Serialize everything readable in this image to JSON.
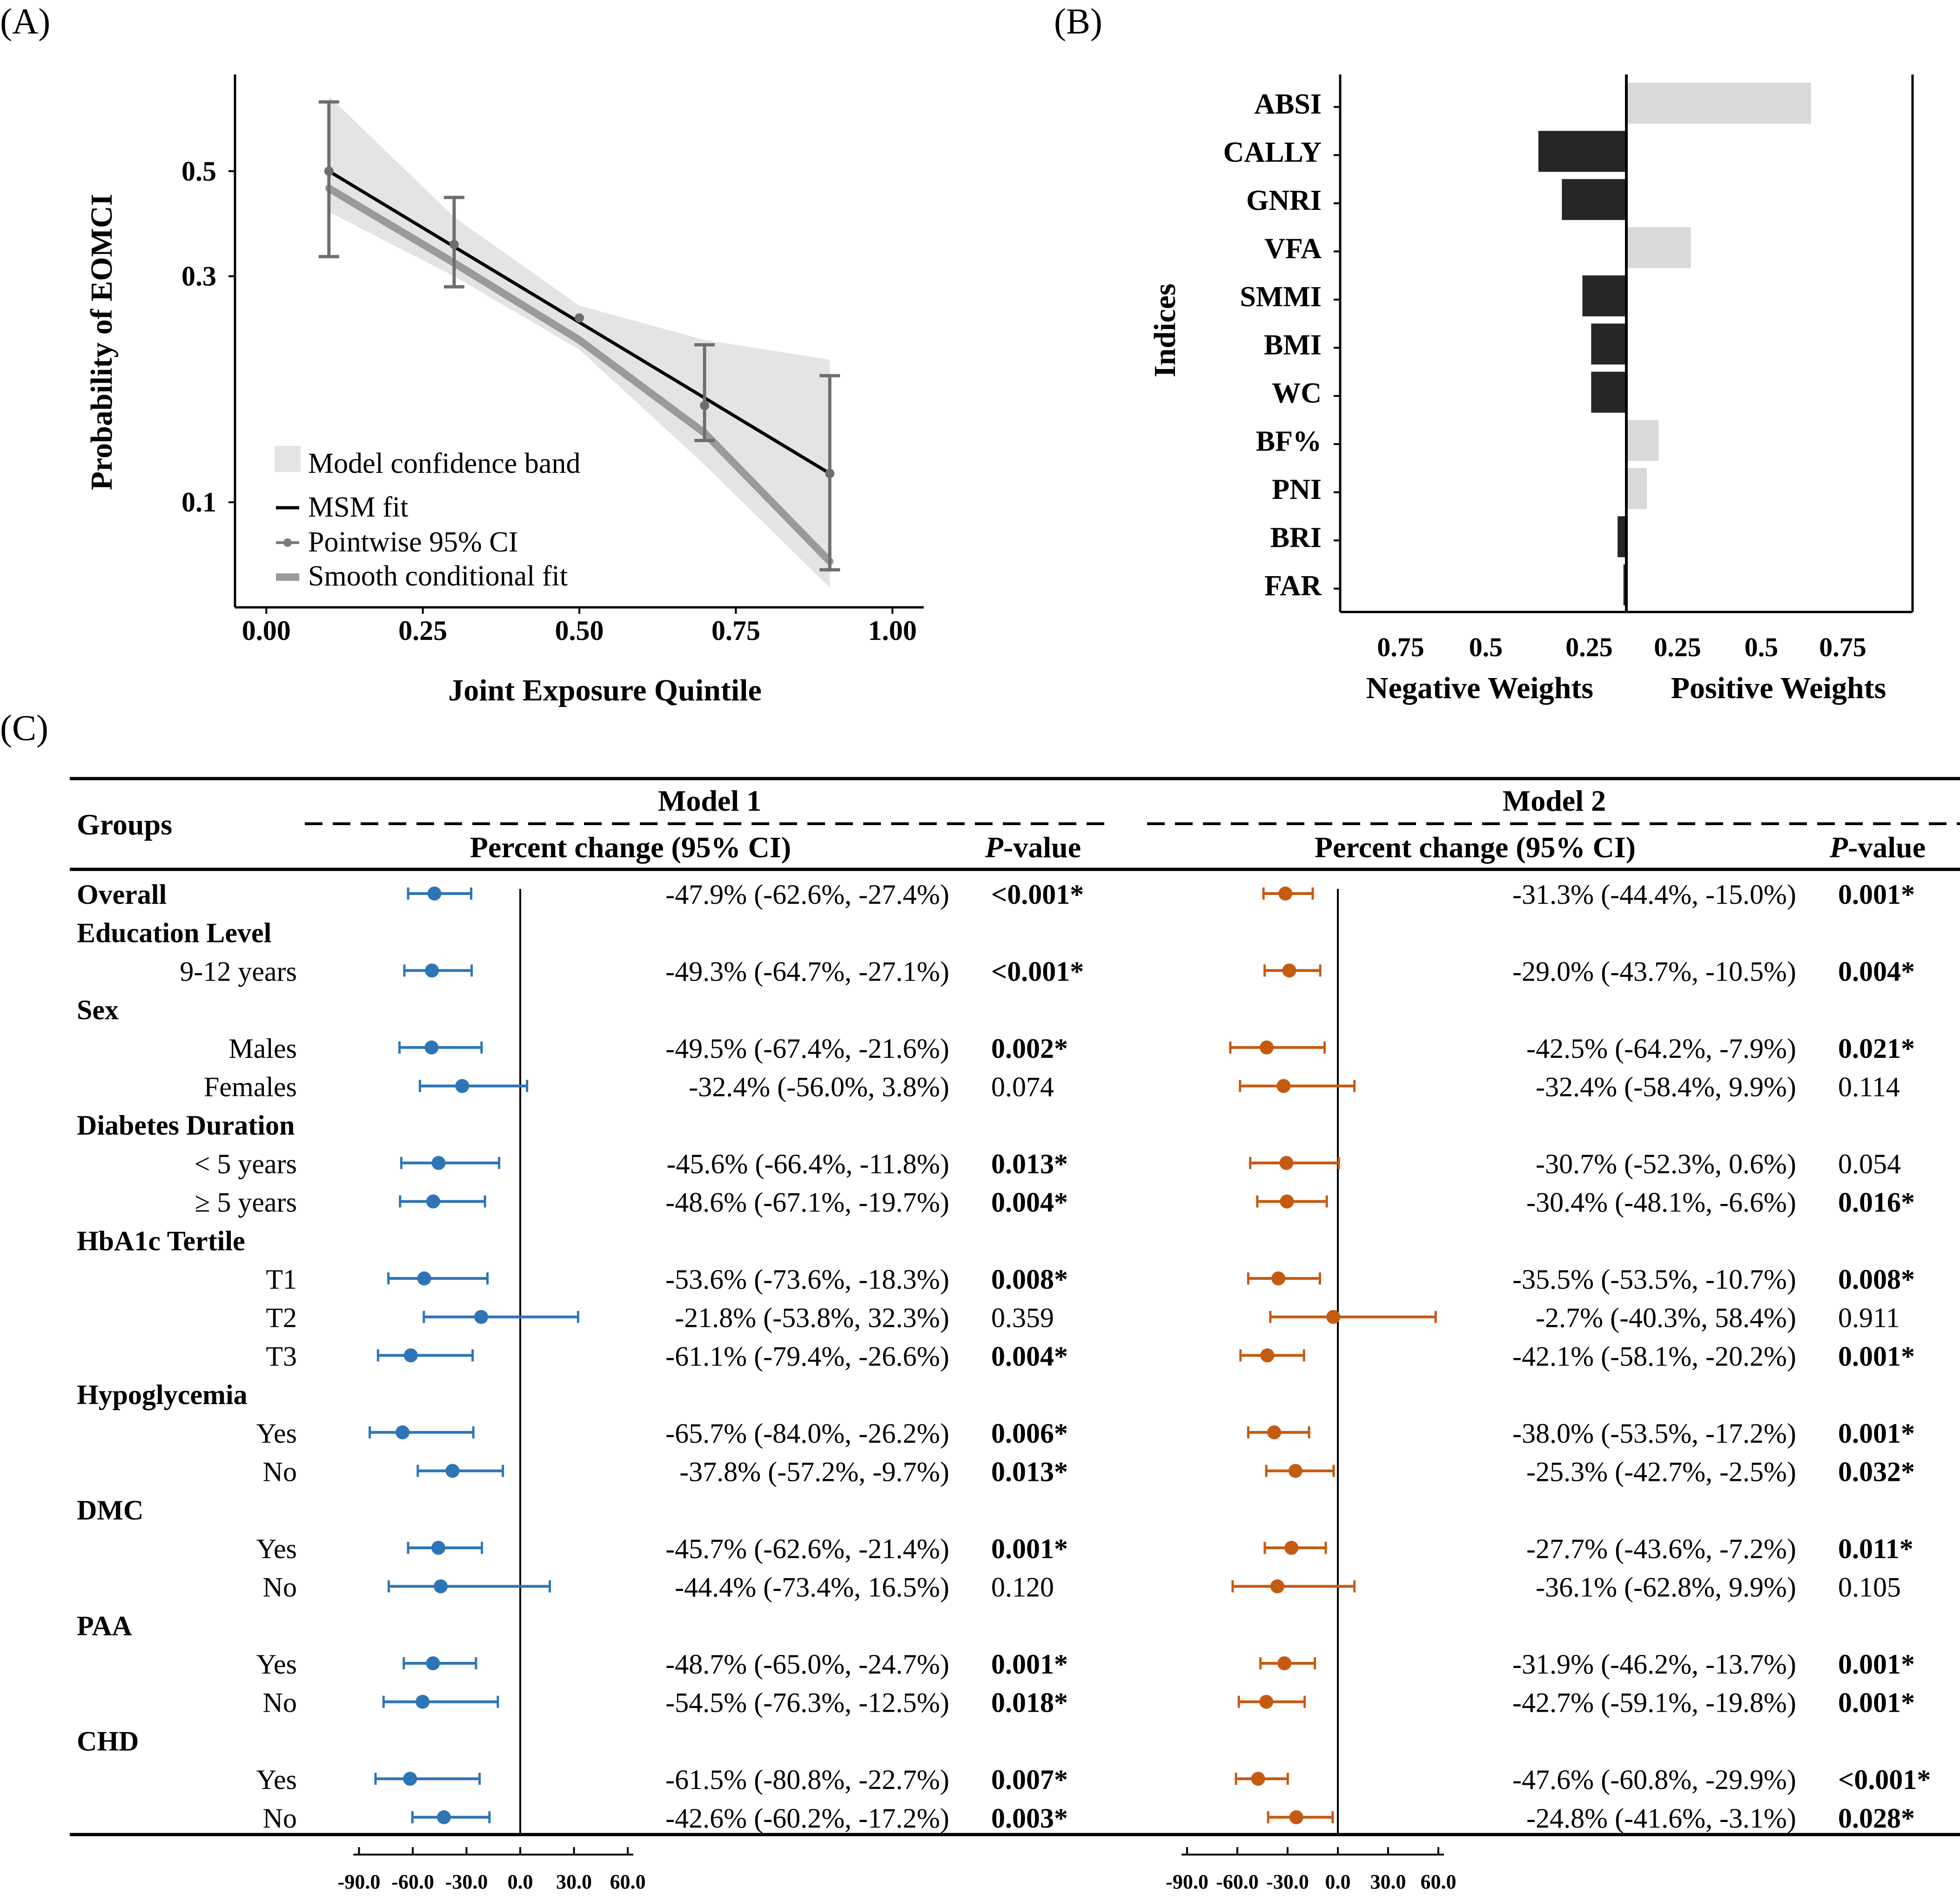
{
  "panel_labels": {
    "a": "(A)",
    "b": "(B)",
    "c": "(C)"
  },
  "chart_data": [
    {
      "type": "line",
      "panel": "(A)",
      "xlabel": "Joint Exposure Quintile",
      "ylabel": "Probability of EOMCI",
      "y_scale": "log",
      "xlim": [
        -0.05,
        1.05
      ],
      "ylim": [
        0.06,
        0.8
      ],
      "xticks": [
        0.0,
        0.25,
        0.5,
        0.75,
        1.0
      ],
      "xtick_labels": [
        "0.00",
        "0.25",
        "0.50",
        "0.75",
        "1.00"
      ],
      "yticks": [
        0.1,
        0.3,
        0.5
      ],
      "ytick_labels": [
        "0.1",
        "0.3",
        "0.5"
      ],
      "legend_position": "bottom-left",
      "legend": [
        "Model confidence band",
        "MSM fit",
        "Pointwise 95% CI",
        "Smooth conditional fit"
      ],
      "msm_fit": {
        "x": [
          0.1,
          0.9
        ],
        "y": [
          0.5,
          0.115
        ]
      },
      "smooth_fit": {
        "x": [
          0.1,
          0.3,
          0.5,
          0.7,
          0.9
        ],
        "y": [
          0.46,
          0.32,
          0.22,
          0.14,
          0.075
        ]
      },
      "band": {
        "x": [
          0.1,
          0.3,
          0.5,
          0.7,
          0.9
        ],
        "lower": [
          0.41,
          0.3,
          0.21,
          0.12,
          0.066
        ],
        "upper": [
          0.72,
          0.4,
          0.26,
          0.22,
          0.2
        ]
      },
      "points": [
        {
          "x": 0.1,
          "y": 0.5,
          "lo": 0.33,
          "hi": 0.7
        },
        {
          "x": 0.3,
          "y": 0.35,
          "lo": 0.285,
          "hi": 0.44
        },
        {
          "x": 0.5,
          "y": 0.245,
          "lo": 0.245,
          "hi": 0.245
        },
        {
          "x": 0.7,
          "y": 0.16,
          "lo": 0.135,
          "hi": 0.215
        },
        {
          "x": 0.9,
          "y": 0.115,
          "lo": 0.072,
          "hi": 0.185
        }
      ]
    },
    {
      "type": "bar",
      "panel": "(B)",
      "orientation": "horizontal",
      "ylabel": "Indices",
      "xlabel_negative": "Negative Weights",
      "xlabel_positive": "Positive Weights",
      "xtick_labels": [
        "0.75",
        "0.5",
        "0.25",
        "0.25",
        "0.5",
        "0.75"
      ],
      "categories": [
        "ABSI",
        "CALLY",
        "GNRI",
        "VFA",
        "SMMI",
        "BMI",
        "WC",
        "BF%",
        "PNI",
        "BRI",
        "FAR"
      ],
      "values": [
        0.63,
        -0.3,
        -0.22,
        0.22,
        -0.15,
        -0.12,
        -0.12,
        0.11,
        0.07,
        -0.03,
        -0.01
      ],
      "colors": {
        "negative": "#262626",
        "positive": "#d9d9d9"
      }
    },
    {
      "type": "table",
      "panel": "(C)",
      "subtype": "forest",
      "header_groups": "Groups",
      "model1_title": "Model 1",
      "model2_title": "Model 2",
      "col_pct": "Percent change (95% CI)",
      "col_p_italic": "P",
      "col_p_rest": "-value",
      "axis_ticks": [
        -90,
        -60,
        -30,
        0,
        30,
        60
      ],
      "axis_tick_labels": [
        "-90.0",
        "-60.0",
        "-30.0",
        "0.0",
        "30.0",
        "60.0"
      ],
      "model1_color": "#2e75b6",
      "model2_color": "#c55a11",
      "rows": [
        {
          "label": "Overall",
          "kind": "header-row",
          "m1": {
            "est": -47.9,
            "lo": -62.6,
            "hi": -27.4,
            "text": "-47.9% (-62.6%, -27.4%)",
            "p": "<0.001*",
            "bold": true
          },
          "m2": {
            "est": -31.3,
            "lo": -44.4,
            "hi": -15.0,
            "text": "-31.3% (-44.4%, -15.0%)",
            "p": "0.001*",
            "bold": true
          }
        },
        {
          "label": "Education Level",
          "kind": "header"
        },
        {
          "label": "9-12 years",
          "kind": "sub",
          "m1": {
            "est": -49.3,
            "lo": -64.7,
            "hi": -27.1,
            "text": "-49.3% (-64.7%, -27.1%)",
            "p": "<0.001*",
            "bold": true
          },
          "m2": {
            "est": -29.0,
            "lo": -43.7,
            "hi": -10.5,
            "text": "-29.0% (-43.7%, -10.5%)",
            "p": "0.004*",
            "bold": true
          }
        },
        {
          "label": "Sex",
          "kind": "header"
        },
        {
          "label": "Males",
          "kind": "sub",
          "m1": {
            "est": -49.5,
            "lo": -67.4,
            "hi": -21.6,
            "text": "-49.5% (-67.4%, -21.6%)",
            "p": "0.002*",
            "bold": true
          },
          "m2": {
            "est": -42.5,
            "lo": -64.2,
            "hi": -7.9,
            "text": "-42.5% (-64.2%, -7.9%)",
            "p": "0.021*",
            "bold": true
          }
        },
        {
          "label": "Females",
          "kind": "sub",
          "m1": {
            "est": -32.4,
            "lo": -56.0,
            "hi": 3.8,
            "text": "-32.4% (-56.0%, 3.8%)",
            "p": "0.074",
            "bold": false
          },
          "m2": {
            "est": -32.4,
            "lo": -58.4,
            "hi": 9.9,
            "text": "-32.4% (-58.4%, 9.9%)",
            "p": "0.114",
            "bold": false
          }
        },
        {
          "label": "Diabetes Duration",
          "kind": "header"
        },
        {
          "label": "< 5 years",
          "kind": "sub",
          "m1": {
            "est": -45.6,
            "lo": -66.4,
            "hi": -11.8,
            "text": "-45.6% (-66.4%, -11.8%)",
            "p": "0.013*",
            "bold": true
          },
          "m2": {
            "est": -30.7,
            "lo": -52.3,
            "hi": 0.6,
            "text": "-30.7% (-52.3%, 0.6%)",
            "p": "0.054",
            "bold": false
          }
        },
        {
          "label": "≥ 5 years",
          "kind": "sub",
          "m1": {
            "est": -48.6,
            "lo": -67.1,
            "hi": -19.7,
            "text": "-48.6% (-67.1%, -19.7%)",
            "p": "0.004*",
            "bold": true
          },
          "m2": {
            "est": -30.4,
            "lo": -48.1,
            "hi": -6.6,
            "text": "-30.4% (-48.1%, -6.6%)",
            "p": "0.016*",
            "bold": true
          }
        },
        {
          "label": "HbA1c Tertile",
          "kind": "header"
        },
        {
          "label": "T1",
          "kind": "sub",
          "m1": {
            "est": -53.6,
            "lo": -73.6,
            "hi": -18.3,
            "text": "-53.6% (-73.6%, -18.3%)",
            "p": "0.008*",
            "bold": true
          },
          "m2": {
            "est": -35.5,
            "lo": -53.5,
            "hi": -10.7,
            "text": "-35.5% (-53.5%, -10.7%)",
            "p": "0.008*",
            "bold": true
          }
        },
        {
          "label": "T2",
          "kind": "sub",
          "m1": {
            "est": -21.8,
            "lo": -53.8,
            "hi": 32.3,
            "text": "-21.8% (-53.8%, 32.3%)",
            "p": "0.359",
            "bold": false
          },
          "m2": {
            "est": -2.7,
            "lo": -40.3,
            "hi": 58.4,
            "text": "-2.7% (-40.3%, 58.4%)",
            "p": "0.911",
            "bold": false
          }
        },
        {
          "label": "T3",
          "kind": "sub",
          "m1": {
            "est": -61.1,
            "lo": -79.4,
            "hi": -26.6,
            "text": "-61.1% (-79.4%, -26.6%)",
            "p": "0.004*",
            "bold": true
          },
          "m2": {
            "est": -42.1,
            "lo": -58.1,
            "hi": -20.2,
            "text": "-42.1% (-58.1%, -20.2%)",
            "p": "0.001*",
            "bold": true
          }
        },
        {
          "label": "Hypoglycemia",
          "kind": "header"
        },
        {
          "label": "Yes",
          "kind": "sub",
          "m1": {
            "est": -65.7,
            "lo": -84.0,
            "hi": -26.2,
            "text": "-65.7% (-84.0%, -26.2%)",
            "p": "0.006*",
            "bold": true
          },
          "m2": {
            "est": -38.0,
            "lo": -53.5,
            "hi": -17.2,
            "text": "-38.0% (-53.5%, -17.2%)",
            "p": "0.001*",
            "bold": true
          }
        },
        {
          "label": "No",
          "kind": "sub",
          "m1": {
            "est": -37.8,
            "lo": -57.2,
            "hi": -9.7,
            "text": "-37.8% (-57.2%, -9.7%)",
            "p": "0.013*",
            "bold": true
          },
          "m2": {
            "est": -25.3,
            "lo": -42.7,
            "hi": -2.5,
            "text": "-25.3% (-42.7%, -2.5%)",
            "p": "0.032*",
            "bold": true
          }
        },
        {
          "label": "DMC",
          "kind": "header"
        },
        {
          "label": "Yes",
          "kind": "sub",
          "m1": {
            "est": -45.7,
            "lo": -62.6,
            "hi": -21.4,
            "text": "-45.7% (-62.6%, -21.4%)",
            "p": "0.001*",
            "bold": true
          },
          "m2": {
            "est": -27.7,
            "lo": -43.6,
            "hi": -7.2,
            "text": "-27.7% (-43.6%, -7.2%)",
            "p": "0.011*",
            "bold": true
          }
        },
        {
          "label": "No",
          "kind": "sub",
          "m1": {
            "est": -44.4,
            "lo": -73.4,
            "hi": 16.5,
            "text": "-44.4% (-73.4%, 16.5%)",
            "p": "0.120",
            "bold": false
          },
          "m2": {
            "est": -36.1,
            "lo": -62.8,
            "hi": 9.9,
            "text": "-36.1% (-62.8%, 9.9%)",
            "p": "0.105",
            "bold": false
          }
        },
        {
          "label": "PAA",
          "kind": "header"
        },
        {
          "label": "Yes",
          "kind": "sub",
          "m1": {
            "est": -48.7,
            "lo": -65.0,
            "hi": -24.7,
            "text": "-48.7% (-65.0%, -24.7%)",
            "p": "0.001*",
            "bold": true
          },
          "m2": {
            "est": -31.9,
            "lo": -46.2,
            "hi": -13.7,
            "text": "-31.9% (-46.2%, -13.7%)",
            "p": "0.001*",
            "bold": true
          }
        },
        {
          "label": "No",
          "kind": "sub",
          "m1": {
            "est": -54.5,
            "lo": -76.3,
            "hi": -12.5,
            "text": "-54.5% (-76.3%, -12.5%)",
            "p": "0.018*",
            "bold": true
          },
          "m2": {
            "est": -42.7,
            "lo": -59.1,
            "hi": -19.8,
            "text": "-42.7% (-59.1%, -19.8%)",
            "p": "0.001*",
            "bold": true
          }
        },
        {
          "label": "CHD",
          "kind": "header"
        },
        {
          "label": "Yes",
          "kind": "sub",
          "m1": {
            "est": -61.5,
            "lo": -80.8,
            "hi": -22.7,
            "text": "-61.5% (-80.8%, -22.7%)",
            "p": "0.007*",
            "bold": true
          },
          "m2": {
            "est": -47.6,
            "lo": -60.8,
            "hi": -29.9,
            "text": "-47.6% (-60.8%, -29.9%)",
            "p": "<0.001*",
            "bold": true
          }
        },
        {
          "label": "No",
          "kind": "sub",
          "m1": {
            "est": -42.6,
            "lo": -60.2,
            "hi": -17.2,
            "text": "-42.6% (-60.2%, -17.2%)",
            "p": "0.003*",
            "bold": true
          },
          "m2": {
            "est": -24.8,
            "lo": -41.6,
            "hi": -3.1,
            "text": "-24.8% (-41.6%, -3.1%)",
            "p": "0.028*",
            "bold": true
          }
        }
      ]
    }
  ]
}
